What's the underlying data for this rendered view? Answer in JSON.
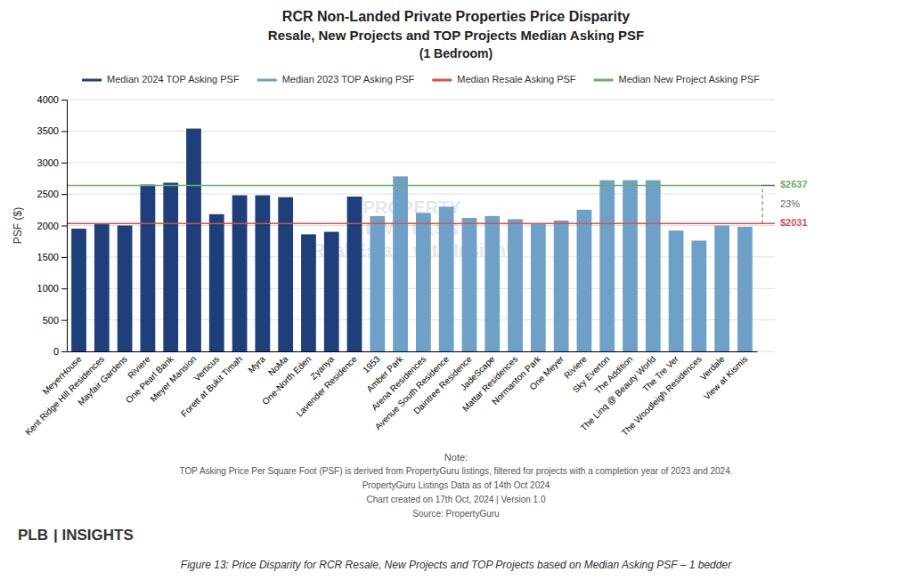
{
  "chart_data": {
    "type": "bar",
    "title": "RCR Non-Landed Private Properties Price Disparity",
    "subtitle": [
      "Resale, New Projects and TOP Projects Median Asking PSF",
      "(1 Bedroom)"
    ],
    "ylabel": "PSF ($)",
    "categories": [
      "MeyerHouse",
      "Kent Ridge Hill Residences",
      "Mayfair Gardens",
      "Riviere",
      "One Pearl Bank",
      "Meyer Mansion",
      "Verticus",
      "Forett at Bukit Timah",
      "Myra",
      "NoMa",
      "One-North Eden",
      "Zyanya",
      "Lavender Residence",
      "1953",
      "Amber Park",
      "Arena Residences",
      "Avenue South Residence",
      "Daintree Residence",
      "JadeScape",
      "Mattar Residences",
      "Normanton Park",
      "One Meyer",
      "Riviere",
      "Sky Everton",
      "The Addition",
      "The Linq @ Beauty World",
      "The Tre Ver",
      "The Woodleigh Residences",
      "Verdale",
      "View at Kismis"
    ],
    "values": [
      1950,
      2020,
      2000,
      2650,
      2680,
      3540,
      2180,
      2480,
      2480,
      2450,
      1860,
      1900,
      2460,
      2150,
      2780,
      2200,
      2300,
      2120,
      2150,
      2100,
      2030,
      2080,
      2250,
      2720,
      2720,
      2720,
      1920,
      1760,
      2000,
      1980
    ],
    "colors": [
      "#1e3f7a",
      "#1e3f7a",
      "#1e3f7a",
      "#1e3f7a",
      "#1e3f7a",
      "#1e3f7a",
      "#1e3f7a",
      "#1e3f7a",
      "#1e3f7a",
      "#1e3f7a",
      "#1e3f7a",
      "#1e3f7a",
      "#1e3f7a",
      "#6fa0c8",
      "#6fa0c8",
      "#6fa0c8",
      "#6fa0c8",
      "#6fa0c8",
      "#6fa0c8",
      "#6fa0c8",
      "#6fa0c8",
      "#6fa0c8",
      "#6fa0c8",
      "#6fa0c8",
      "#6fa0c8",
      "#6fa0c8",
      "#6fa0c8",
      "#6fa0c8",
      "#6fa0c8",
      "#6fa0c8"
    ],
    "ylim": [
      0,
      4000
    ],
    "yticks": [
      0,
      500,
      1000,
      1500,
      2000,
      2500,
      3000,
      3500,
      4000
    ],
    "grid": true,
    "legend": "top",
    "legend_entries": [
      {
        "name": "Median 2024 TOP Asking PSF",
        "color": "#1e3f7a"
      },
      {
        "name": "Median 2023 TOP Asking PSF",
        "color": "#6fa0c8"
      },
      {
        "name": "Median Resale Asking PSF",
        "color": "#d94f4f"
      },
      {
        "name": "Median New Project Asking PSF",
        "color": "#6ab06a"
      }
    ],
    "reference_lines": [
      {
        "value": 2031,
        "label": "$2031",
        "color": "#d94f4f"
      },
      {
        "value": 2637,
        "label": "$2637",
        "color": "#6ab06a"
      }
    ],
    "disparity_label": "23%",
    "watermark": [
      "PROPERTY",
      "LIMITLESS",
      "Real Estate with Insight"
    ],
    "notes": [
      "Note:",
      "TOP Asking Price Per Square Foot (PSF) is derived from PropertyGuru listings, filtered for projects with a completion year of 2023 and 2024.",
      "PropertyGuru Listings Data as of 14th Oct 2024",
      "Chart created on 17th Oct, 2024 | Version 1.0",
      "Source: PropertyGuru"
    ],
    "logo": [
      "PLB",
      "| INSIGHTS"
    ],
    "footer": "Figure 13: Price Disparity for RCR Resale, New Projects and TOP Projects based on Median Asking PSF – 1 bedder"
  }
}
